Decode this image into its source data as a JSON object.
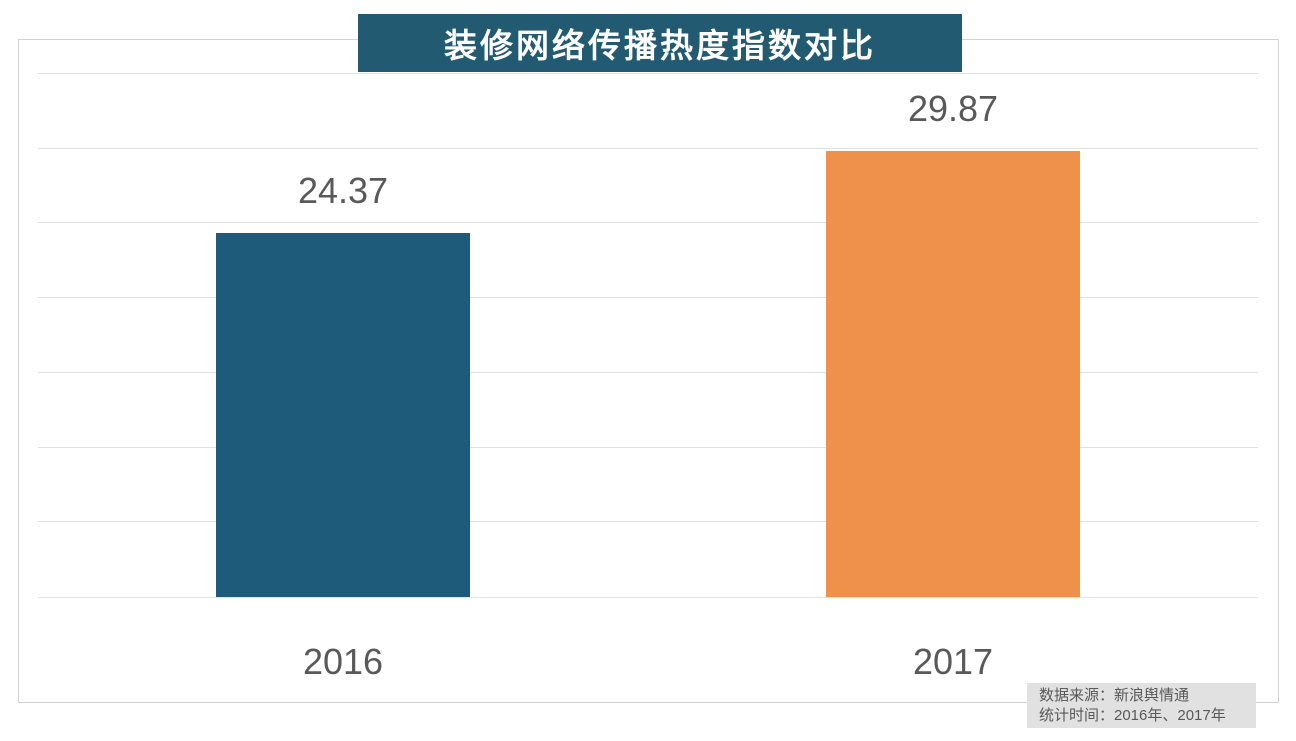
{
  "title": "装修网络传播热度指数对比",
  "source_note": {
    "line1": "数据来源：新浪舆情通",
    "line2": "统计时间：2016年、2017年"
  },
  "colors": {
    "background": "#ffffff",
    "banner_bg": "#225a72",
    "banner_text": "#ffffff",
    "bar_2016": "#1e5b7a",
    "bar_2017": "#f0914b",
    "label_text": "#595959",
    "gridline": "#e2e2e2",
    "border": "#d2d2d2",
    "source_bg": "#e1e1e1",
    "source_text": "#595959"
  },
  "chart_data": {
    "type": "bar",
    "title": "装修网络传播热度指数对比",
    "categories": [
      "2016",
      "2017"
    ],
    "values": [
      24.37,
      29.87
    ],
    "value_labels": [
      "24.37",
      "29.87"
    ],
    "bar_colors": [
      "#1e5b7a",
      "#f0914b"
    ],
    "xlabel": "",
    "ylabel": "",
    "ylim": [
      0,
      35
    ],
    "grid_step": 5,
    "grid": true,
    "y_tick_labels_visible": false,
    "legend": false,
    "annotations": [
      "数据来源：新浪舆情通",
      "统计时间：2016年、2017年"
    ]
  }
}
